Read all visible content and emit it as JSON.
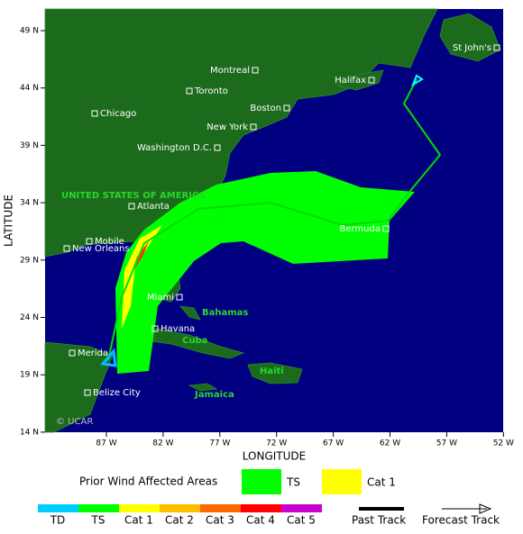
{
  "axes": {
    "x_label": "LONGITUDE",
    "y_label": "LATITUDE",
    "x_ticks": [
      "87 W",
      "82 W",
      "77 W",
      "72 W",
      "67 W",
      "62 W",
      "57 W",
      "52 W"
    ],
    "y_ticks": [
      "49 N",
      "44 N",
      "39 N",
      "34 N",
      "29 N",
      "24 N",
      "19 N",
      "14 N"
    ]
  },
  "places": [
    "St John's",
    "Halifax",
    "Montreal",
    "Toronto",
    "Chicago",
    "Boston",
    "New York",
    "Washington D.C.",
    "Atlanta",
    "Bermuda",
    "Mobile",
    "New Orleans",
    "Miami",
    "Havana",
    "Merida",
    "Belize City"
  ],
  "regions": [
    "UNITED STATES OF AMERICA",
    "Bahamas",
    "Cuba",
    "Haiti",
    "Jamaica"
  ],
  "watermark": "© UCAR",
  "legend": {
    "title": "Prior Wind Affected Areas",
    "items": [
      "TS",
      "Cat 1"
    ],
    "scale": [
      "TD",
      "TS",
      "Cat 1",
      "Cat 2",
      "Cat 3",
      "Cat 4",
      "Cat 5"
    ],
    "tracks": [
      "Past Track",
      "Forecast Track"
    ]
  }
}
